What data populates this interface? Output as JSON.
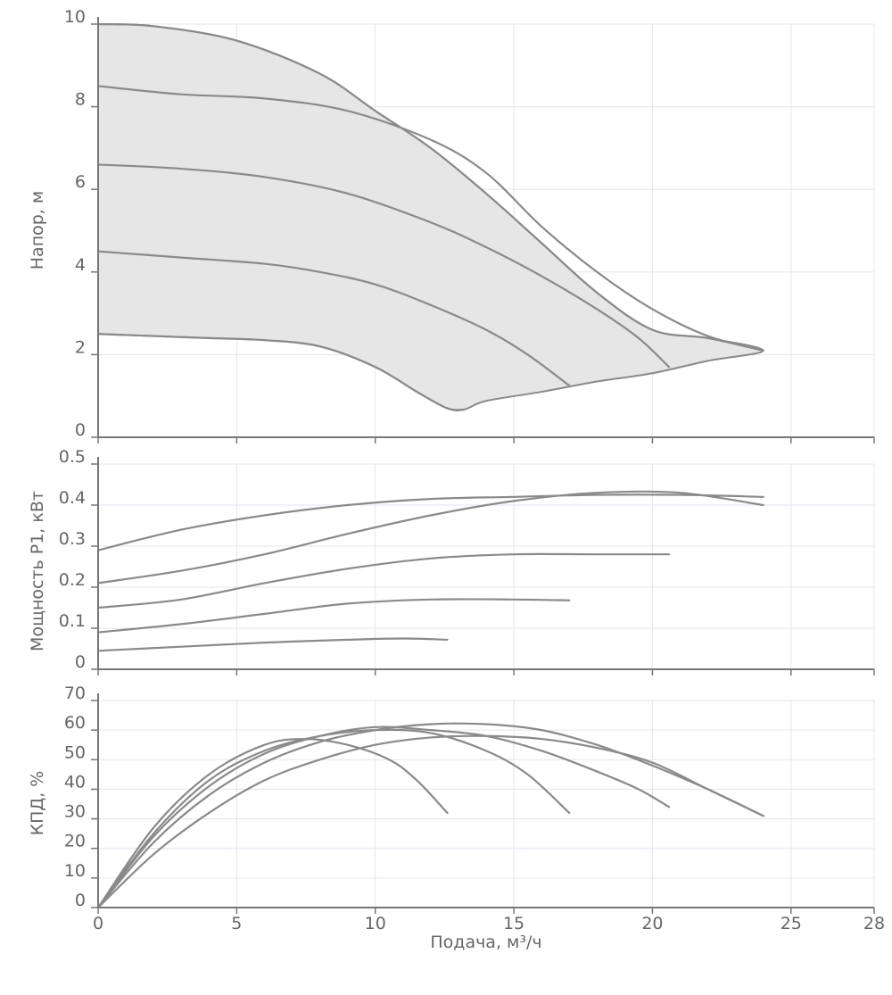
{
  "chart_data": {
    "type": "line",
    "x_axis": {
      "label": "Подача, м³/ч",
      "range": [
        0,
        28
      ],
      "ticks": [
        0,
        5,
        10,
        15,
        20,
        25,
        28
      ]
    },
    "panels": [
      {
        "id": "head",
        "ylabel": "Напор, м",
        "ylim": [
          0,
          10
        ],
        "yticks": [
          0,
          2,
          4,
          6,
          8,
          10
        ],
        "ytick_labels": [
          "0",
          "2",
          "4",
          "6",
          "8",
          "10"
        ],
        "envelope": [
          [
            0,
            10
          ],
          [
            2,
            9.95
          ],
          [
            5,
            9.6
          ],
          [
            8,
            8.8
          ],
          [
            10,
            7.9
          ],
          [
            12,
            7
          ],
          [
            14,
            5.9
          ],
          [
            16,
            4.7
          ],
          [
            18,
            3.5
          ],
          [
            20,
            2.6
          ],
          [
            22,
            2.4
          ],
          [
            24,
            2.1
          ],
          [
            22,
            1.85
          ],
          [
            20,
            1.55
          ],
          [
            18,
            1.35
          ],
          [
            16,
            1.1
          ],
          [
            14,
            0.88
          ],
          [
            13.2,
            0.67
          ],
          [
            12.6,
            0.7
          ],
          [
            11.5,
            1.1
          ],
          [
            10,
            1.7
          ],
          [
            8,
            2.2
          ],
          [
            6,
            2.35
          ],
          [
            4,
            2.4
          ],
          [
            2,
            2.45
          ],
          [
            0,
            2.5
          ]
        ],
        "series": [
          {
            "name": "speed-1",
            "points": [
              [
                0,
                10
              ],
              [
                2,
                9.95
              ],
              [
                5,
                9.6
              ],
              [
                8,
                8.8
              ],
              [
                10,
                7.9
              ],
              [
                12,
                7
              ],
              [
                14,
                5.9
              ],
              [
                16,
                4.7
              ],
              [
                18,
                3.5
              ],
              [
                20,
                2.6
              ],
              [
                22,
                2.4
              ],
              [
                24,
                2.1
              ]
            ]
          },
          {
            "name": "speed-2",
            "points": [
              [
                0,
                8.5
              ],
              [
                3,
                8.3
              ],
              [
                6,
                8.2
              ],
              [
                9,
                7.9
              ],
              [
                12,
                7.2
              ],
              [
                14,
                6.4
              ],
              [
                16,
                5.1
              ],
              [
                18,
                4.0
              ],
              [
                20,
                3.1
              ],
              [
                22,
                2.45
              ],
              [
                24,
                2.1
              ]
            ]
          },
          {
            "name": "speed-3",
            "points": [
              [
                0,
                6.6
              ],
              [
                3,
                6.5
              ],
              [
                6,
                6.3
              ],
              [
                9,
                5.9
              ],
              [
                12,
                5.2
              ],
              [
                14,
                4.6
              ],
              [
                16,
                3.9
              ],
              [
                18,
                3.1
              ],
              [
                19.5,
                2.4
              ],
              [
                20.6,
                1.7
              ]
            ]
          },
          {
            "name": "speed-4",
            "points": [
              [
                0,
                4.5
              ],
              [
                3,
                4.35
              ],
              [
                6,
                4.2
              ],
              [
                8,
                4.0
              ],
              [
                10,
                3.7
              ],
              [
                12,
                3.2
              ],
              [
                14,
                2.6
              ],
              [
                15.5,
                2.0
              ],
              [
                17,
                1.25
              ]
            ]
          },
          {
            "name": "speed-5",
            "points": [
              [
                0,
                2.5
              ],
              [
                2,
                2.45
              ],
              [
                4,
                2.4
              ],
              [
                6,
                2.35
              ],
              [
                8,
                2.2
              ],
              [
                10,
                1.7
              ],
              [
                11.5,
                1.1
              ],
              [
                12.6,
                0.7
              ],
              [
                13.2,
                0.67
              ]
            ]
          }
        ]
      },
      {
        "id": "power",
        "ylabel": "Мощность P1, кВт",
        "ylim": [
          0,
          0.5
        ],
        "yticks": [
          0,
          0.1,
          0.2,
          0.3,
          0.4,
          0.5
        ],
        "ytick_labels": [
          "0",
          "0.1",
          "0.2",
          "0.3",
          "0.4",
          "0.5"
        ],
        "series": [
          {
            "name": "speed-1",
            "points": [
              [
                0,
                0.29
              ],
              [
                3,
                0.34
              ],
              [
                6,
                0.375
              ],
              [
                9,
                0.4
              ],
              [
                12,
                0.415
              ],
              [
                15,
                0.42
              ],
              [
                18,
                0.425
              ],
              [
                21,
                0.425
              ],
              [
                24,
                0.42
              ]
            ]
          },
          {
            "name": "speed-2",
            "points": [
              [
                0,
                0.21
              ],
              [
                3,
                0.24
              ],
              [
                6,
                0.28
              ],
              [
                9,
                0.33
              ],
              [
                12,
                0.375
              ],
              [
                15,
                0.41
              ],
              [
                18,
                0.43
              ],
              [
                21,
                0.43
              ],
              [
                24,
                0.4
              ]
            ]
          },
          {
            "name": "speed-3",
            "points": [
              [
                0,
                0.15
              ],
              [
                3,
                0.17
              ],
              [
                6,
                0.21
              ],
              [
                9,
                0.245
              ],
              [
                12,
                0.27
              ],
              [
                15,
                0.28
              ],
              [
                18,
                0.28
              ],
              [
                20.6,
                0.28
              ]
            ]
          },
          {
            "name": "speed-4",
            "points": [
              [
                0,
                0.09
              ],
              [
                3,
                0.11
              ],
              [
                6,
                0.135
              ],
              [
                9,
                0.16
              ],
              [
                12,
                0.17
              ],
              [
                15,
                0.17
              ],
              [
                17,
                0.168
              ]
            ]
          },
          {
            "name": "speed-5",
            "points": [
              [
                0,
                0.045
              ],
              [
                3,
                0.055
              ],
              [
                6,
                0.065
              ],
              [
                9,
                0.072
              ],
              [
                11,
                0.075
              ],
              [
                12.6,
                0.072
              ]
            ]
          }
        ]
      },
      {
        "id": "efficiency",
        "ylabel": "КПД, %",
        "ylim": [
          0,
          70
        ],
        "yticks": [
          0,
          10,
          20,
          30,
          40,
          50,
          60,
          70
        ],
        "ytick_labels": [
          "0",
          "10",
          "20",
          "30",
          "40",
          "50",
          "60",
          "70"
        ],
        "series": [
          {
            "name": "speed-1",
            "points": [
              [
                0,
                0
              ],
              [
                2,
                18
              ],
              [
                4,
                32
              ],
              [
                6,
                43
              ],
              [
                8,
                50
              ],
              [
                10,
                55
              ],
              [
                12,
                57.5
              ],
              [
                14,
                58
              ],
              [
                16,
                57
              ],
              [
                18,
                54
              ],
              [
                20,
                49
              ],
              [
                22,
                40
              ],
              [
                24,
                31
              ]
            ]
          },
          {
            "name": "speed-2",
            "points": [
              [
                0,
                0
              ],
              [
                2,
                22
              ],
              [
                4,
                38
              ],
              [
                6,
                49
              ],
              [
                8,
                56
              ],
              [
                10,
                60
              ],
              [
                12,
                62
              ],
              [
                14,
                62
              ],
              [
                16,
                60
              ],
              [
                18,
                55
              ],
              [
                20,
                48
              ],
              [
                22,
                40
              ],
              [
                24,
                31
              ]
            ]
          },
          {
            "name": "speed-3",
            "points": [
              [
                0,
                0
              ],
              [
                2,
                24
              ],
              [
                4,
                41
              ],
              [
                6,
                52
              ],
              [
                8,
                58
              ],
              [
                10,
                61
              ],
              [
                12,
                60
              ],
              [
                14,
                58
              ],
              [
                16,
                53
              ],
              [
                18,
                46
              ],
              [
                19.5,
                40
              ],
              [
                20.6,
                34
              ]
            ]
          },
          {
            "name": "speed-4",
            "points": [
              [
                0,
                0
              ],
              [
                2,
                25
              ],
              [
                4,
                43
              ],
              [
                6,
                53
              ],
              [
                8,
                58
              ],
              [
                10,
                60
              ],
              [
                12,
                59
              ],
              [
                14,
                53
              ],
              [
                15.5,
                45
              ],
              [
                17,
                32
              ]
            ]
          },
          {
            "name": "speed-5",
            "points": [
              [
                0,
                0
              ],
              [
                2,
                27
              ],
              [
                4,
                45
              ],
              [
                6,
                55
              ],
              [
                7.5,
                57
              ],
              [
                9,
                55
              ],
              [
                10.5,
                50
              ],
              [
                11.5,
                43
              ],
              [
                12.6,
                32
              ]
            ]
          }
        ]
      }
    ]
  }
}
